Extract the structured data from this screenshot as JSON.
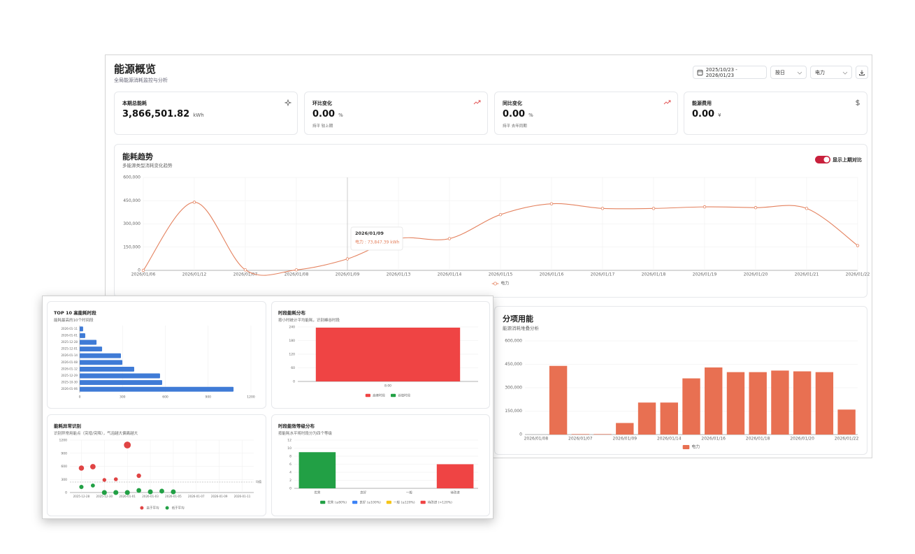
{
  "header": {
    "title": "能源概览",
    "subtitle": "全局能源消耗监控与分析"
  },
  "controls": {
    "date_range": "2025/10/23 - 2026/01/23",
    "granularity": "按日",
    "energy_type": "电力"
  },
  "kpis": [
    {
      "label": "本期总能耗",
      "value": "3,866,501.82",
      "unit": "kWh"
    },
    {
      "label": "环比变化",
      "value": "0.00",
      "unit": "%",
      "note": "持平 较上期"
    },
    {
      "label": "同比变化",
      "value": "0.00",
      "unit": "%",
      "note": "持平 去年同期"
    },
    {
      "label": "能源费用",
      "value": "0.00",
      "unit": "¥"
    }
  ],
  "chart_data": [
    {
      "type": "line",
      "title": "能耗趋势",
      "subtitle": "多能源类型消耗变化趋势",
      "toggle_label": "显示上期对比",
      "categories": [
        "2026/01/06",
        "2026/01/12",
        "2026/01/07",
        "2026/01/08",
        "2026/01/09",
        "2026/01/13",
        "2026/01/14",
        "2026/01/15",
        "2026/01/16",
        "2026/01/17",
        "2026/01/18",
        "2026/01/19",
        "2026/01/20",
        "2026/01/21",
        "2026/01/22"
      ],
      "series": [
        {
          "name": "电力",
          "color": "#e4825f",
          "values": [
            0,
            440000,
            3000,
            3000,
            73847.39,
            205000,
            205000,
            360000,
            430000,
            400000,
            400000,
            410000,
            405000,
            400000,
            160000
          ]
        }
      ],
      "ylim": [
        0,
        600000
      ],
      "yticks": [
        0,
        {
          "value": 150000,
          "label": "150,000"
        },
        {
          "value": 300000,
          "label": "300,000"
        },
        {
          "value": 450000,
          "label": "450,000"
        },
        {
          "value": 600000,
          "label": "600,000"
        }
      ],
      "grid": true,
      "tooltip": {
        "title": "2026/01/09",
        "label": "电力 : 73,847.39 kWh"
      }
    },
    {
      "type": "bar",
      "title": "分项用能",
      "subtitle": "能源消耗堆叠分析",
      "categories": [
        "2026/01/08",
        null,
        "2026/01/07",
        null,
        "2026/01/09",
        null,
        "2026/01/14",
        null,
        "2026/01/16",
        null,
        "2026/01/18",
        null,
        "2026/01/20",
        null,
        "2026/01/22"
      ],
      "series": [
        {
          "name": "电力",
          "color": "#e87052",
          "values": [
            0,
            440000,
            3000,
            3000,
            74000,
            205000,
            205000,
            360000,
            430000,
            400000,
            400000,
            410000,
            405000,
            400000,
            160000
          ]
        }
      ],
      "ylim": [
        0,
        600000
      ],
      "yticks": [
        0,
        {
          "value": 150000,
          "label": "150,000"
        },
        {
          "value": 300000,
          "label": "300,000"
        },
        {
          "value": 450000,
          "label": "450,000"
        },
        {
          "value": 600000,
          "label": "600,000"
        }
      ],
      "grid": true
    },
    {
      "type": "hbar",
      "title": "TOP 10 高能耗时段",
      "subtitle": "能耗最高的10个时间段",
      "categories": [
        "2026-01-11",
        "2026-01-01",
        "2025-12-28",
        "2025-12-01",
        "2026-01-14",
        "2026-01-08",
        "2026-01-12",
        "2025-12-29",
        "2025-10-30",
        "2026-01-06"
      ],
      "values": [
        24,
        39,
        118,
        157,
        289,
        299,
        382,
        563,
        578,
        1078
      ],
      "color": "#3f7bd6",
      "xlim": [
        0,
        1200
      ],
      "xticks": [
        0,
        300,
        600,
        900,
        1200
      ],
      "grid": true
    },
    {
      "type": "bar",
      "title": "时段能耗分布",
      "subtitle": "按小时统计平均能耗，识别峰谷时段",
      "categories": [
        "8:00"
      ],
      "series": [
        {
          "name": "高峰时段",
          "color": "#ef4444",
          "values": [
            237
          ]
        },
        {
          "name": "谷值时段",
          "color": "#22a045",
          "values": [
            null
          ]
        }
      ],
      "ylim": [
        0,
        240
      ],
      "yticks": [
        0,
        60,
        120,
        180,
        240
      ],
      "grid": true
    },
    {
      "type": "scatter",
      "title": "能耗异常识别",
      "subtitle": "识别异常用能点（突增/突降），气泡越大偏离越大",
      "xlim": [
        "2025-12-27",
        "2026-01-12"
      ],
      "xticks": [
        "2025-12-28",
        "2025-12-30",
        "2026-01-01",
        "2026-01-03",
        "2026-01-05",
        "2026-01-07",
        "2026-01-09",
        "2026-01-11"
      ],
      "ylim": [
        0,
        1200
      ],
      "yticks": [
        0,
        300,
        600,
        900,
        1200
      ],
      "grid": true,
      "average": 240,
      "average_label": "均值",
      "series": [
        {
          "name": "高于平均",
          "color": "#e04444",
          "x": [
            "2025-12-28",
            "2025-12-29",
            "2025-12-30",
            "2025-12-31",
            "2026-01-01",
            "2026-01-02"
          ],
          "values": [
            560,
            592,
            288,
            304,
            1088,
            384
          ]
        },
        {
          "name": "低于平均",
          "color": "#22a045",
          "x": [
            "2025-12-28",
            "2025-12-29",
            "2025-12-30",
            "2025-12-31",
            "2026-01-01",
            "2026-01-02",
            "2026-01-03",
            "2026-01-04",
            "2026-01-05"
          ],
          "values": [
            128,
            160,
            0,
            0,
            0,
            48,
            16,
            32,
            16
          ]
        }
      ]
    },
    {
      "type": "bar",
      "title": "时段能效等级分布",
      "subtitle": "按能耗水平将时段分为四个等级",
      "categories": [
        "优秀",
        "良好",
        "一般",
        "待改进"
      ],
      "values": [
        9,
        0,
        0,
        6
      ],
      "colors": [
        "#22a045",
        "#3b82f6",
        "#f5c518",
        "#ef4444"
      ],
      "legend": [
        "优秀 (≤80%)",
        "良好 (≤100%)",
        "一般 (≤120%)",
        "待改进 (>120%)"
      ],
      "ylim": [
        0,
        12
      ],
      "yticks": [
        0,
        2,
        4,
        6,
        8,
        10,
        12
      ],
      "grid": true
    }
  ]
}
